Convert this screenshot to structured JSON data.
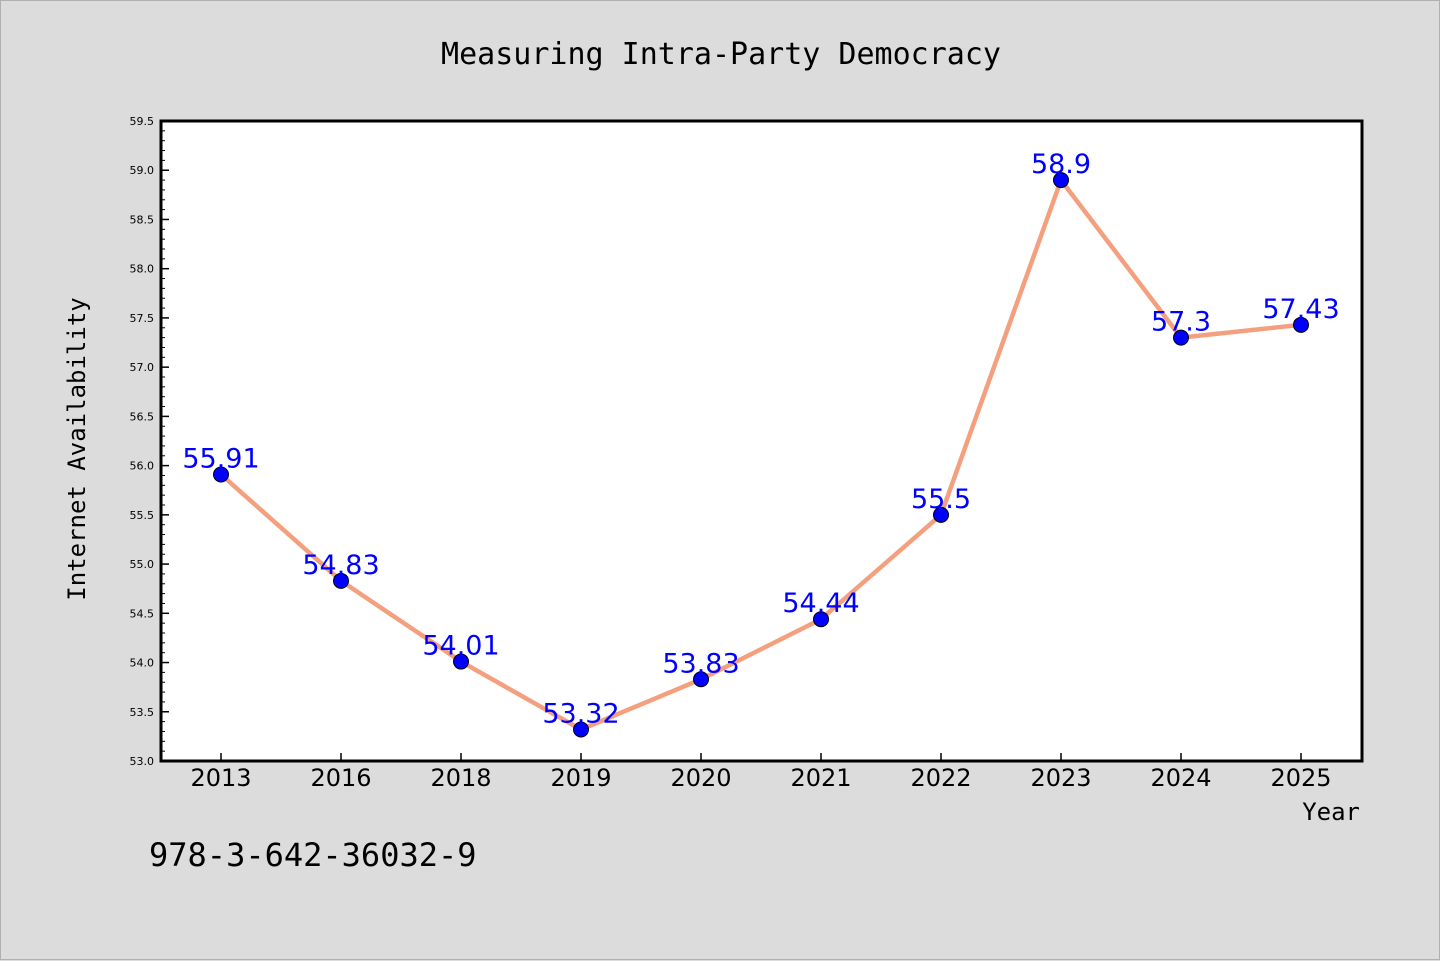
{
  "chart_data": {
    "type": "line",
    "title": "Measuring Intra-Party Democracy",
    "xlabel": "Year",
    "ylabel": "Internet Availability",
    "categories": [
      "2013",
      "2016",
      "2018",
      "2019",
      "2020",
      "2021",
      "2022",
      "2023",
      "2024",
      "2025"
    ],
    "series": [
      {
        "values": [
          55.91,
          54.83,
          54.01,
          53.32,
          53.83,
          54.44,
          55.5,
          58.9,
          57.3,
          57.43
        ],
        "data_labels": [
          "55.91",
          "54.83",
          "54.01",
          "53.32",
          "53.83",
          "54.44",
          "55.5",
          "58.9",
          "57.3",
          "57.43"
        ],
        "line_color": "#f4a07f",
        "marker_color": "#0000ff"
      }
    ],
    "ylim": [
      53.0,
      59.5
    ],
    "yticks": [
      "53.0",
      "53.5",
      "54.0",
      "54.5",
      "55.0",
      "55.5",
      "56.0",
      "56.5",
      "57.0",
      "57.5",
      "58.0",
      "58.5",
      "59.0",
      "59.5"
    ],
    "grid": false,
    "legend": "none",
    "background": "#dcdcdc",
    "plot_background": "#ffffff"
  },
  "footer": {
    "isbn": "978-3-642-36032-9"
  }
}
